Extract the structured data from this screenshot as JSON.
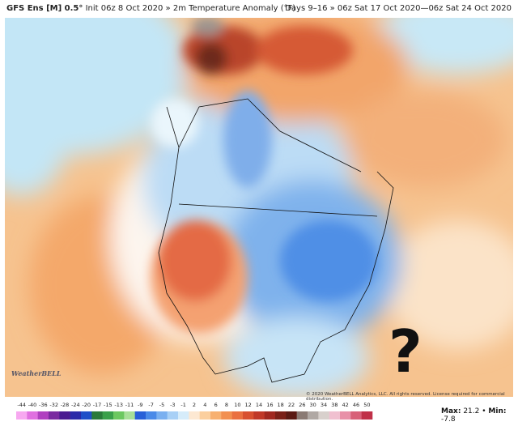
{
  "header": {
    "model": "GFS Ens [M] 0.5°",
    "init": "Init 06z 8 Oct 2020 » 2m Temperature Anomaly (°F)",
    "period": "Days 9–16 » 06z Sat 17 Oct 2020—06z Sat 24 Oct 2020"
  },
  "map": {
    "annotation": "?",
    "logo": "WeatherBELL",
    "copyright": "© 2020 WeatherBELL Analytics, LLC. All rights reserved. License required for commercial distribution."
  },
  "colorbar": {
    "ticks": [
      -44,
      -40,
      -36,
      -32,
      -28,
      -24,
      -20,
      -17,
      -15,
      -13,
      -11,
      -9,
      -7,
      -5,
      -3,
      -1,
      2,
      4,
      6,
      8,
      10,
      12,
      14,
      16,
      18,
      22,
      26,
      30,
      34,
      38,
      42,
      46,
      50
    ],
    "colors": [
      "#f7a8f0",
      "#e070e0",
      "#b040c0",
      "#7a2aa0",
      "#4a1a90",
      "#2a2aa8",
      "#1f4fc8",
      "#2a7a3a",
      "#3aa04a",
      "#6cc860",
      "#a8e098",
      "#2860d8",
      "#4a8ae8",
      "#7ab0f0",
      "#a8d0f6",
      "#d6ecfa",
      "#fde8d2",
      "#fbcf9e",
      "#f7b070",
      "#f29050",
      "#ea7040",
      "#d85030",
      "#c03828",
      "#a02820",
      "#7a2018",
      "#5a1a14",
      "#8a7a74",
      "#b0a8a4",
      "#d8d0cc",
      "#f0c0d0",
      "#e890a8",
      "#d86078",
      "#c03048"
    ]
  },
  "stats": {
    "max_label": "Max:",
    "max": 21.2,
    "separator": "•",
    "min_label": "Min:",
    "min": -7.8
  }
}
